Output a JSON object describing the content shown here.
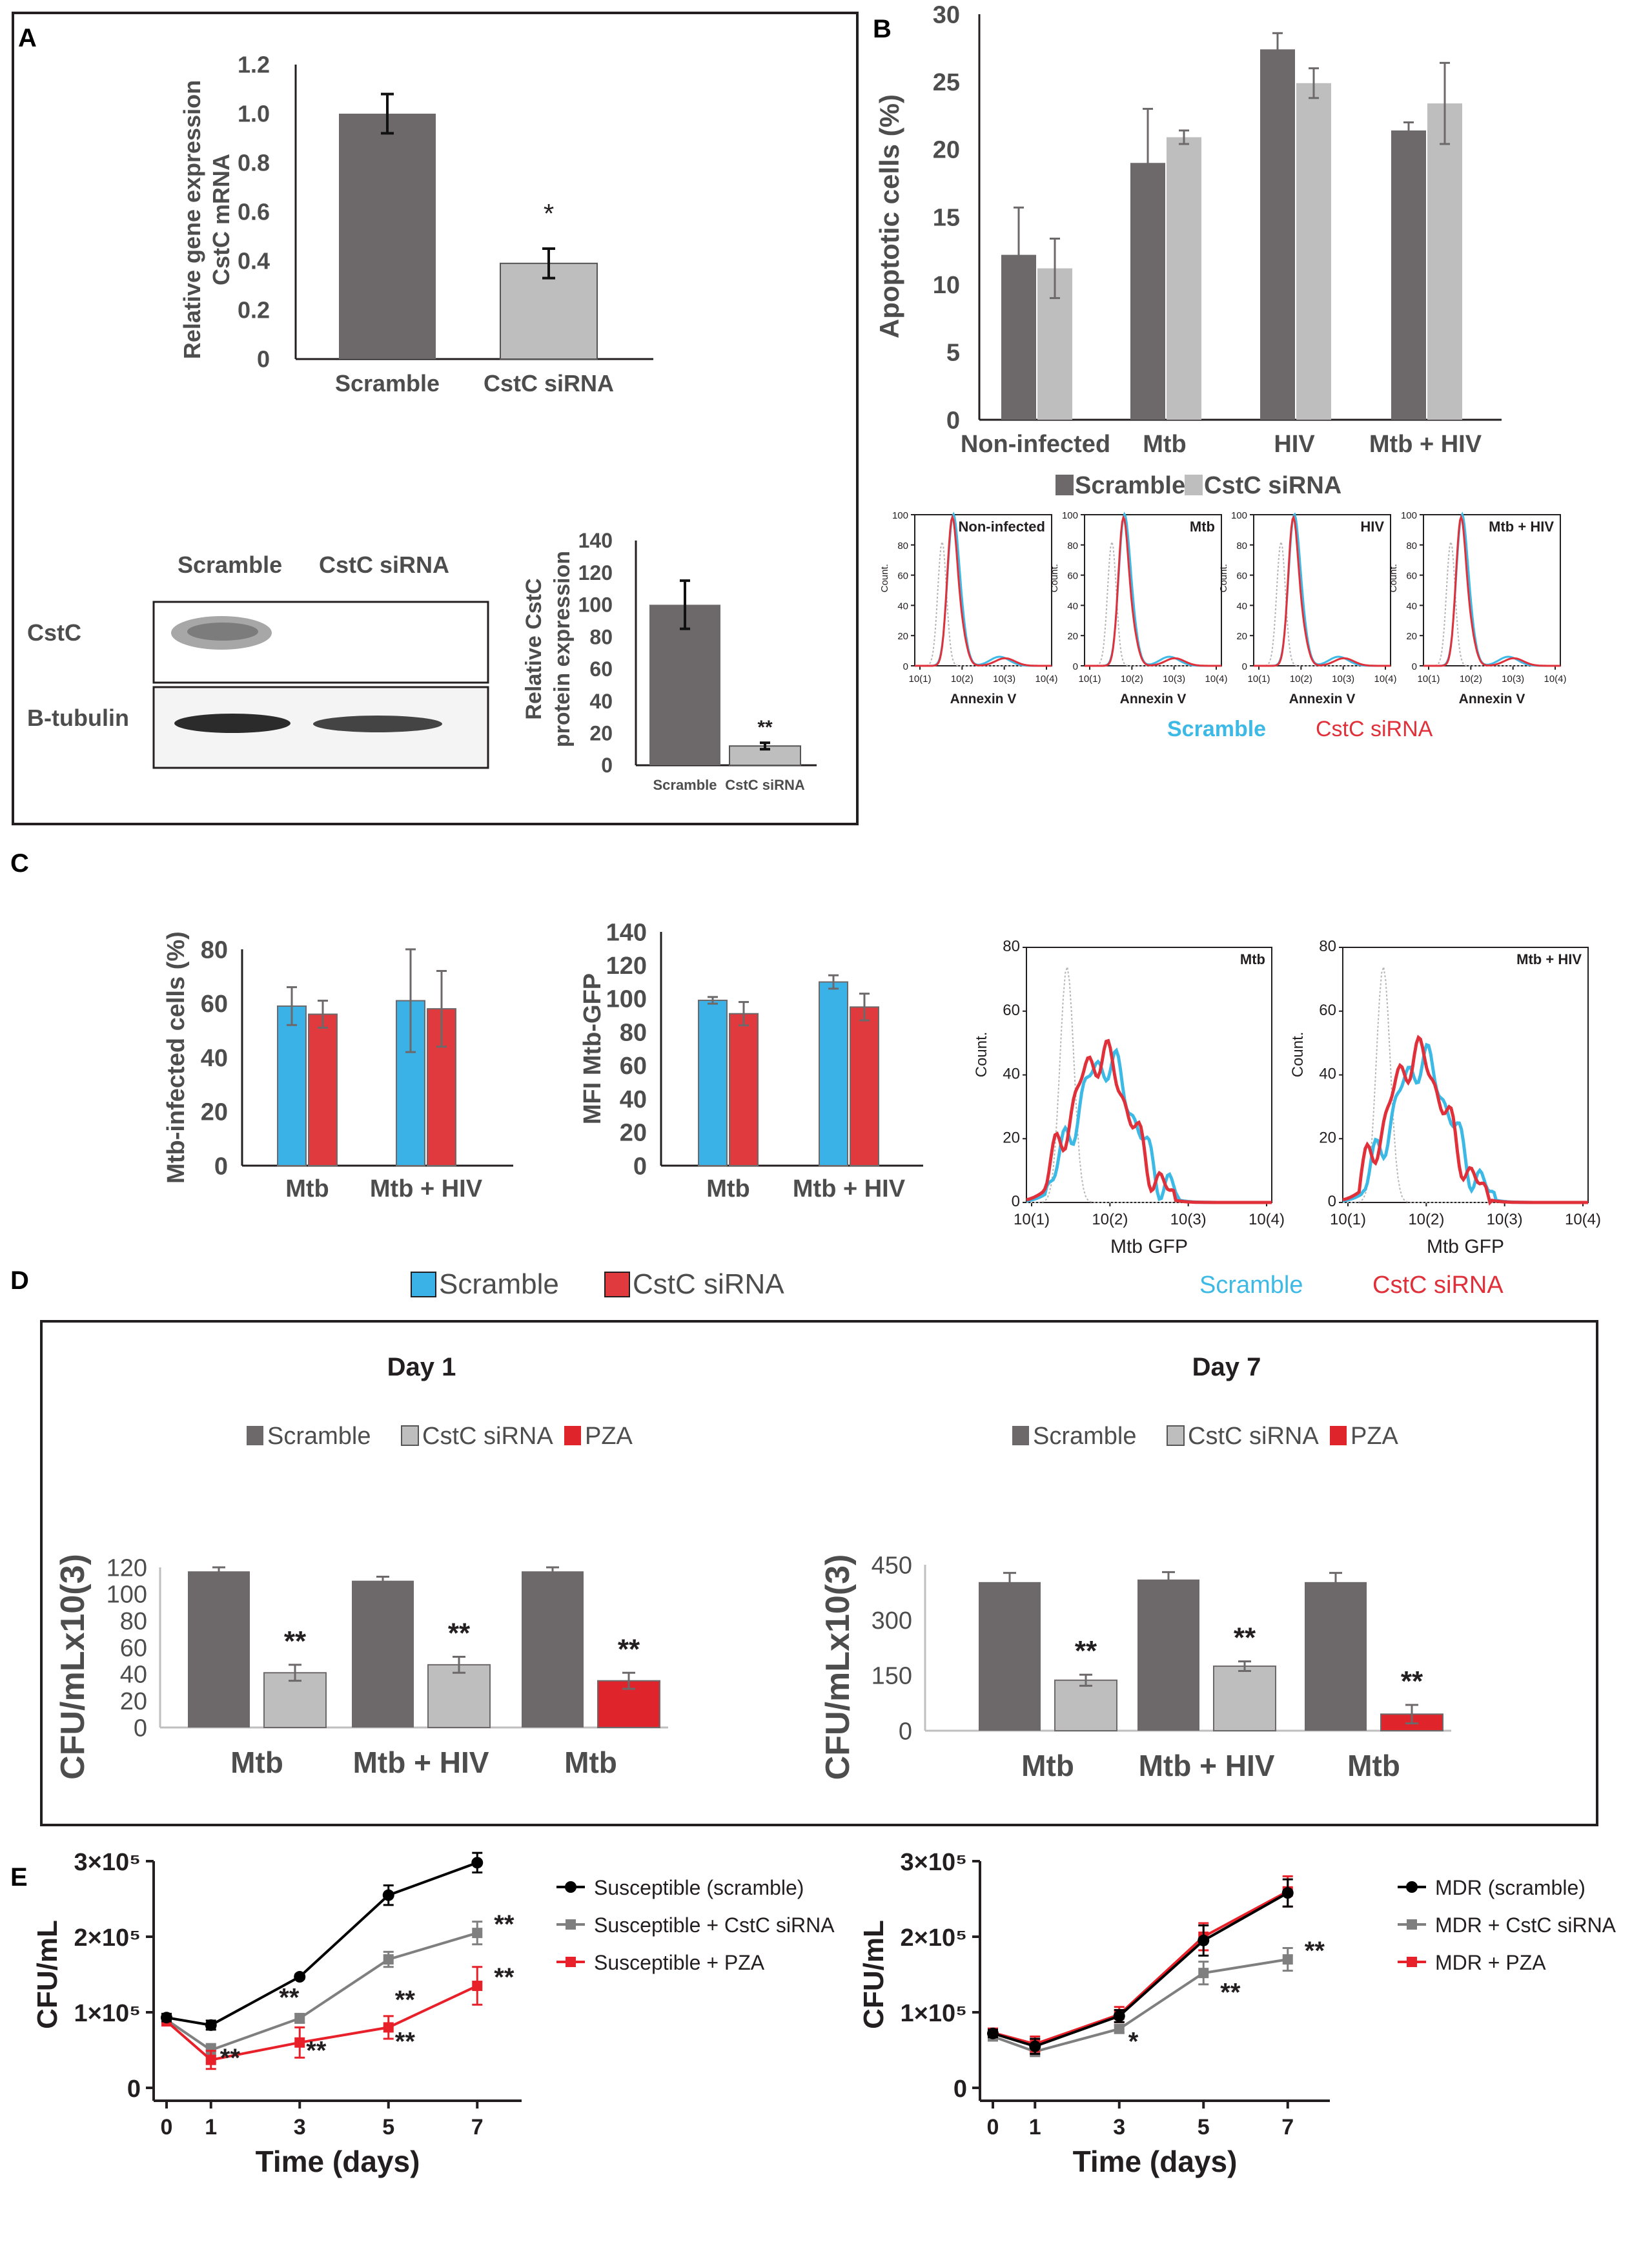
{
  "colors": {
    "dark_bar": "#6d6869",
    "light_bar": "#bfbebe",
    "blue_bar": "#3bb2e7",
    "red_bar": "#e03a3e",
    "pza_red": "#e0242b",
    "axis": "#231f20",
    "flow_blue": "#3db9e6",
    "flow_red": "#e0303a",
    "flow_gray": "#b5b5b5",
    "grey_text": "#4d4d4d",
    "point_black": "#000000",
    "point_gray": "#7f7f7f",
    "point_red": "#e8202a"
  },
  "panels": {
    "a": {
      "letter": "A"
    },
    "b": {
      "letter": "B"
    },
    "c": {
      "letter": "C"
    },
    "d": {
      "letter": "D"
    },
    "e": {
      "letter": "E"
    }
  },
  "blot": {
    "col_labels": [
      "Scramble",
      "CstC siRNA"
    ],
    "rows": [
      {
        "label": "CstC"
      },
      {
        "label": "B-tubulin"
      }
    ]
  },
  "shared_legends": {
    "flow_scramble": "Scramble",
    "flow_cstc": "CstC siRNA",
    "bar_scramble": "Scramble",
    "bar_cstc": "CstC siRNA"
  },
  "chart_data": [
    {
      "id": "A_mrna",
      "type": "bar",
      "categories": [
        "Scramble",
        "CstC siRNA"
      ],
      "values": [
        1.0,
        0.39
      ],
      "errors": [
        0.08,
        0.06
      ],
      "annotations": [
        "",
        "*"
      ],
      "ylabel": "Relative gene expression CstC mRNA",
      "ylabel_lines": [
        "Relative gene expression",
        "CstC mRNA"
      ],
      "ylim": [
        0,
        1.2
      ],
      "yticks": [
        "0",
        "0.2",
        "0.4",
        "0.6",
        "0.8",
        "1.0",
        "1.2"
      ]
    },
    {
      "id": "A_protein",
      "type": "bar",
      "categories": [
        "Scramble",
        "CstC siRNA"
      ],
      "values": [
        100,
        12
      ],
      "errors": [
        15,
        2
      ],
      "annotations": [
        "",
        "**"
      ],
      "ylabel": "Relative CstC protein expression",
      "ylabel_lines": [
        "Relative CstC",
        "protein expression"
      ],
      "ylim": [
        0,
        140
      ],
      "yticks": [
        "0",
        "20",
        "40",
        "60",
        "80",
        "100",
        "120",
        "140"
      ]
    },
    {
      "id": "B_apoptosis",
      "type": "bar",
      "categories": [
        "Non-infected",
        "Mtb",
        "HIV",
        "Mtb + HIV"
      ],
      "series": [
        {
          "name": "Scramble",
          "values": [
            12.2,
            19.0,
            27.4,
            21.4
          ],
          "errors": [
            3.5,
            4.0,
            1.2,
            0.6
          ]
        },
        {
          "name": "CstC siRNA",
          "values": [
            11.2,
            20.9,
            24.9,
            23.4
          ],
          "errors": [
            2.2,
            0.5,
            1.1,
            3.0
          ]
        }
      ],
      "ylabel": "Apoptotic cells (%)",
      "ylim": [
        0,
        30
      ],
      "yticks": [
        "0",
        "5",
        "10",
        "15",
        "20",
        "25",
        "30"
      ]
    },
    {
      "id": "B_flow",
      "type": "line",
      "panels": [
        "Non-infected",
        "Mtb",
        "HIV",
        "Mtb + HIV"
      ],
      "xlabel": "Annexin V",
      "ylabel": "Count.",
      "xticks": [
        "10(1)",
        "10(2)",
        "10(3)",
        "10(4)"
      ],
      "ylim": [
        0,
        100
      ],
      "yticks": [
        "0",
        "20",
        "40",
        "60",
        "80",
        "100"
      ],
      "series": [
        "Scramble",
        "CstC siRNA"
      ]
    },
    {
      "id": "C_infected",
      "type": "bar",
      "categories": [
        "Mtb",
        "Mtb + HIV"
      ],
      "series": [
        {
          "name": "Scramble",
          "values": [
            59,
            61
          ],
          "errors": [
            7,
            19
          ]
        },
        {
          "name": "CstC siRNA",
          "values": [
            56,
            58
          ],
          "errors": [
            5,
            14
          ]
        }
      ],
      "ylabel": "Mtb-infected cells (%)",
      "ylim": [
        0,
        80
      ],
      "yticks": [
        "0",
        "20",
        "40",
        "60",
        "80"
      ]
    },
    {
      "id": "C_mfi",
      "type": "bar",
      "categories": [
        "Mtb",
        "Mtb + HIV"
      ],
      "series": [
        {
          "name": "Scramble",
          "values": [
            99,
            110
          ],
          "errors": [
            2,
            4
          ]
        },
        {
          "name": "CstC siRNA",
          "values": [
            91,
            95
          ],
          "errors": [
            7,
            8
          ]
        }
      ],
      "ylabel": "MFI Mtb-GFP",
      "ylim": [
        0,
        140
      ],
      "yticks": [
        "0",
        "20",
        "40",
        "60",
        "80",
        "100",
        "120",
        "140"
      ]
    },
    {
      "id": "C_flow",
      "type": "line",
      "panels": [
        "Mtb",
        "Mtb + HIV"
      ],
      "xlabel": "Mtb GFP",
      "ylabel": "Count.",
      "xticks": [
        "10(1)",
        "10(2)",
        "10(3)",
        "10(4)"
      ],
      "ylim": [
        0,
        80
      ],
      "yticks": [
        "0",
        "20",
        "40",
        "60",
        "80"
      ],
      "series": [
        "Scramble",
        "CstC siRNA"
      ]
    },
    {
      "id": "D_day1",
      "type": "bar",
      "title": "Day 1",
      "legend": [
        "Scramble",
        "CstC siRNA",
        "PZA"
      ],
      "groups": [
        {
          "label": "Mtb",
          "control": 117,
          "control_err": 3,
          "treated": 41,
          "treated_err": 6,
          "treated_kind": "CstC siRNA",
          "annotation": "**"
        },
        {
          "label": "Mtb + HIV",
          "control": 110,
          "control_err": 3,
          "treated": 47,
          "treated_err": 6,
          "treated_kind": "CstC siRNA",
          "annotation": "**"
        },
        {
          "label": "Mtb",
          "control": 117,
          "control_err": 3,
          "treated": 35,
          "treated_err": 6,
          "treated_kind": "PZA",
          "annotation": "**"
        }
      ],
      "ylabel": "CFU/mLx10(3)",
      "ylim": [
        0,
        120
      ],
      "yticks": [
        "0",
        "20",
        "40",
        "60",
        "80",
        "100",
        "120"
      ]
    },
    {
      "id": "D_day7",
      "type": "bar",
      "title": "Day 7",
      "legend": [
        "Scramble",
        "CstC siRNA",
        "PZA"
      ],
      "groups": [
        {
          "label": "Mtb",
          "control": 403,
          "control_err": 25,
          "treated": 137,
          "treated_err": 15,
          "treated_kind": "CstC siRNA",
          "annotation": "**"
        },
        {
          "label": "Mtb + HIV",
          "control": 410,
          "control_err": 20,
          "treated": 175,
          "treated_err": 13,
          "treated_kind": "CstC siRNA",
          "annotation": "**"
        },
        {
          "label": "Mtb",
          "control": 403,
          "control_err": 25,
          "treated": 45,
          "treated_err": 25,
          "treated_kind": "PZA",
          "annotation": "**"
        }
      ],
      "ylabel": "CFU/mLx10(3)",
      "ylim": [
        0,
        450
      ],
      "yticks": [
        "0",
        "150",
        "300",
        "450"
      ]
    },
    {
      "id": "E_susceptible",
      "type": "line",
      "x": [
        0,
        1,
        3,
        5,
        7
      ],
      "xlabel": "Time (days)",
      "ylabel": "CFU/mL",
      "ylim": [
        0,
        300000
      ],
      "yticks": [
        "0",
        "1×10⁵",
        "2×10⁵",
        "3×10⁵"
      ],
      "series": [
        {
          "name": "Susceptible (scramble)",
          "values": [
            93000,
            83000,
            147000,
            255000,
            298000
          ],
          "errors": [
            5000,
            6000,
            3000,
            13000,
            13000
          ],
          "marker": "circle"
        },
        {
          "name": "Susceptible + CstC siRNA",
          "values": [
            90000,
            50000,
            92000,
            170000,
            205000
          ],
          "errors": [
            5000,
            8000,
            6000,
            10000,
            15000
          ],
          "marker": "square"
        },
        {
          "name": "Susceptible + PZA",
          "values": [
            88000,
            37000,
            60000,
            80000,
            135000
          ],
          "errors": [
            5000,
            12000,
            20000,
            15000,
            25000
          ],
          "marker": "square"
        }
      ],
      "annotations": [
        {
          "x": 1,
          "text": "**"
        },
        {
          "x": 3,
          "text": "**"
        },
        {
          "x": 3,
          "text": "**"
        },
        {
          "x": 5,
          "text": "**"
        },
        {
          "x": 5,
          "text": "**"
        },
        {
          "x": 7,
          "text": "**"
        },
        {
          "x": 7,
          "text": "**"
        }
      ]
    },
    {
      "id": "E_mdr",
      "type": "line",
      "x": [
        0,
        1,
        3,
        5,
        7
      ],
      "xlabel": "Time (days)",
      "ylabel": "CFU/mL",
      "ylim": [
        0,
        300000
      ],
      "yticks": [
        "0",
        "1×10⁵",
        "2×10⁵",
        "3×10⁵"
      ],
      "series": [
        {
          "name": "MDR (scramble)",
          "values": [
            72000,
            55000,
            95000,
            195000,
            258000
          ],
          "errors": [
            5000,
            10000,
            8000,
            20000,
            18000
          ],
          "marker": "circle"
        },
        {
          "name": "MDR + CstC siRNA",
          "values": [
            68000,
            48000,
            78000,
            152000,
            170000
          ],
          "errors": [
            5000,
            6000,
            5000,
            15000,
            15000
          ],
          "marker": "square"
        },
        {
          "name": "MDR + PZA",
          "values": [
            73000,
            58000,
            97000,
            200000,
            260000
          ],
          "errors": [
            5000,
            10000,
            10000,
            18000,
            20000
          ],
          "marker": "square"
        }
      ],
      "annotations": [
        {
          "x": 3,
          "text": "*"
        },
        {
          "x": 5,
          "text": "**"
        },
        {
          "x": 7,
          "text": "**"
        }
      ]
    }
  ]
}
